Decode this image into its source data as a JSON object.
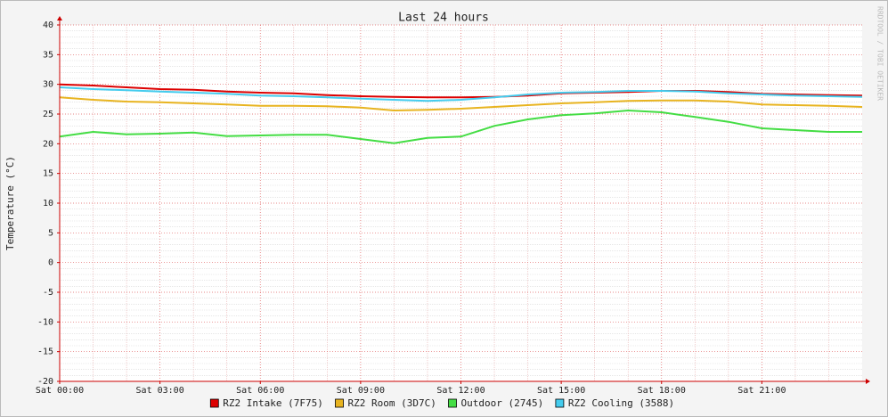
{
  "chart_data": {
    "type": "line",
    "title": "Last 24 hours",
    "ylabel": "Temperature (°C)",
    "watermark": "RRDTOOL / TOBI OETIKER",
    "x": [
      0,
      1,
      2,
      3,
      4,
      5,
      6,
      7,
      8,
      9,
      10,
      11,
      12,
      13,
      14,
      15,
      16,
      17,
      18,
      19,
      20,
      21,
      22,
      23,
      24
    ],
    "xlim": [
      0,
      24
    ],
    "xticks": [
      {
        "value": 0,
        "label": "Sat 00:00"
      },
      {
        "value": 3,
        "label": "Sat 03:00"
      },
      {
        "value": 6,
        "label": "Sat 06:00"
      },
      {
        "value": 9,
        "label": "Sat 09:00"
      },
      {
        "value": 12,
        "label": "Sat 12:00"
      },
      {
        "value": 15,
        "label": "Sat 15:00"
      },
      {
        "value": 18,
        "label": "Sat 18:00"
      },
      {
        "value": 21,
        "label": "Sat 21:00"
      }
    ],
    "ylim": [
      -20,
      40
    ],
    "yticks": [
      -20,
      -15,
      -10,
      -5,
      0,
      5,
      10,
      15,
      20,
      25,
      30,
      35,
      40
    ],
    "grid": true,
    "legend": "bottom",
    "series": [
      {
        "name": "RZ2 Intake (7F75)",
        "color": "#dd0000",
        "values": [
          30.0,
          29.8,
          29.5,
          29.2,
          29.1,
          28.8,
          28.6,
          28.5,
          28.2,
          28.0,
          27.9,
          27.8,
          27.8,
          27.9,
          28.1,
          28.5,
          28.6,
          28.7,
          28.9,
          28.9,
          28.7,
          28.4,
          28.3,
          28.2,
          28.1
        ]
      },
      {
        "name": "RZ2 Room (3D7C)",
        "color": "#e8b420",
        "values": [
          27.8,
          27.4,
          27.1,
          27.0,
          26.8,
          26.6,
          26.4,
          26.4,
          26.3,
          26.1,
          25.6,
          25.7,
          25.9,
          26.2,
          26.5,
          26.8,
          27.0,
          27.2,
          27.3,
          27.3,
          27.1,
          26.6,
          26.5,
          26.4,
          26.2
        ]
      },
      {
        "name": "Outdoor (2745)",
        "color": "#44dd44",
        "values": [
          21.2,
          22.0,
          21.6,
          21.7,
          21.9,
          21.3,
          21.4,
          21.5,
          21.5,
          20.8,
          20.1,
          21.0,
          21.2,
          23.0,
          24.1,
          24.8,
          25.1,
          25.6,
          25.3,
          24.5,
          23.7,
          22.6,
          22.3,
          22.0,
          22.0
        ]
      },
      {
        "name": "RZ2 Cooling (3588)",
        "color": "#44ccee",
        "values": [
          29.5,
          29.2,
          29.0,
          28.8,
          28.6,
          28.4,
          28.1,
          28.0,
          27.8,
          27.6,
          27.4,
          27.2,
          27.4,
          27.8,
          28.3,
          28.6,
          28.7,
          28.9,
          28.9,
          28.8,
          28.5,
          28.3,
          28.1,
          28.0,
          27.9
        ]
      }
    ]
  }
}
